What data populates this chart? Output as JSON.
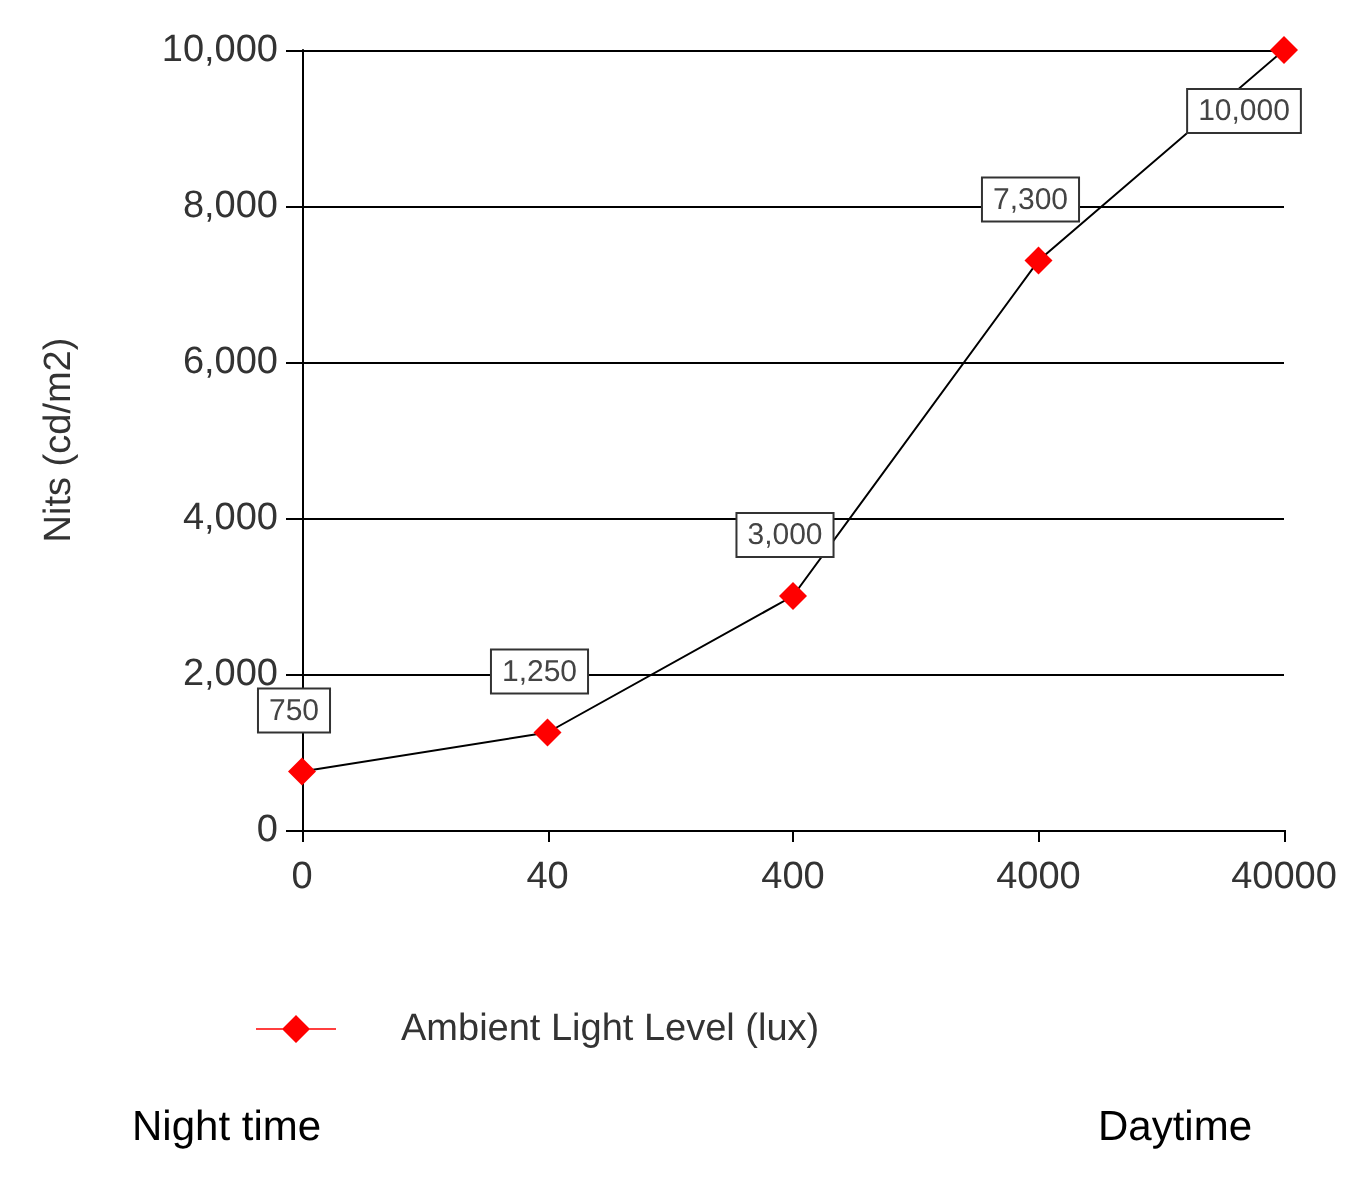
{
  "chart_data": {
    "type": "line",
    "ylabel": "Nits (cd/m2)",
    "categories": [
      "0",
      "40",
      "400",
      "4000",
      "40000"
    ],
    "series": [
      {
        "name": "Ambient Light Level (lux)",
        "color": "#ff0000",
        "values": [
          750,
          1250,
          3000,
          7300,
          10000
        ],
        "value_labels": [
          "750",
          "1,250",
          "3,000",
          "7,300",
          "10,000"
        ]
      }
    ],
    "ylim": [
      0,
      10000
    ],
    "yticks": [
      {
        "value": 0,
        "label": "0"
      },
      {
        "value": 2000,
        "label": "2,000"
      },
      {
        "value": 4000,
        "label": "4,000"
      },
      {
        "value": 6000,
        "label": "6,000"
      },
      {
        "value": 8000,
        "label": "8,000"
      },
      {
        "value": 10000,
        "label": "10,000"
      }
    ],
    "grid": "y",
    "legend": "bottom",
    "marker": "diamond",
    "line_style": "solid",
    "annotations": [
      "Night time",
      "Daytime"
    ]
  }
}
